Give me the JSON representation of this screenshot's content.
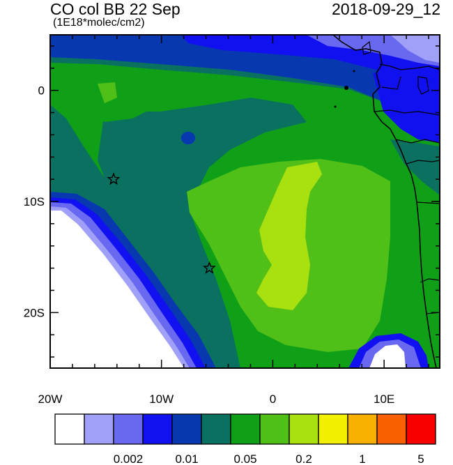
{
  "title": "CO col BB 22 Sep",
  "datetime": "2018-09-29_12",
  "units": "(1E18*molec/cm2)",
  "map": {
    "lon_range": [
      -20,
      15
    ],
    "lat_range": [
      -25,
      5
    ],
    "x_ticks": [
      {
        "value": -20,
        "label": "20W"
      },
      {
        "value": -10,
        "label": "10W"
      },
      {
        "value": 0,
        "label": "0"
      },
      {
        "value": 10,
        "label": "10E"
      }
    ],
    "y_ticks": [
      {
        "value": 0,
        "label": "0"
      },
      {
        "value": -10,
        "label": "10S"
      },
      {
        "value": -20,
        "label": "20S"
      }
    ],
    "markers": [
      {
        "name": "star-marker-north",
        "lon": -14.3,
        "lat": -8.0
      },
      {
        "name": "star-marker-south",
        "lon": -5.7,
        "lat": -16.0
      }
    ]
  },
  "colorbar": {
    "colors": [
      "#ffffff",
      "#a0a0f8",
      "#6868f0",
      "#1010f0",
      "#0838b0",
      "#0a7060",
      "#10a018",
      "#50c018",
      "#a8e010",
      "#f0f000",
      "#f8b000",
      "#f86000",
      "#f80000"
    ],
    "labels": [
      {
        "text": "0.002",
        "boundary": 2
      },
      {
        "text": "0.01",
        "boundary": 4
      },
      {
        "text": "0.05",
        "boundary": 6
      },
      {
        "text": "0.2",
        "boundary": 8
      },
      {
        "text": "1",
        "boundary": 10
      },
      {
        "text": "5",
        "boundary": 12
      }
    ]
  }
}
